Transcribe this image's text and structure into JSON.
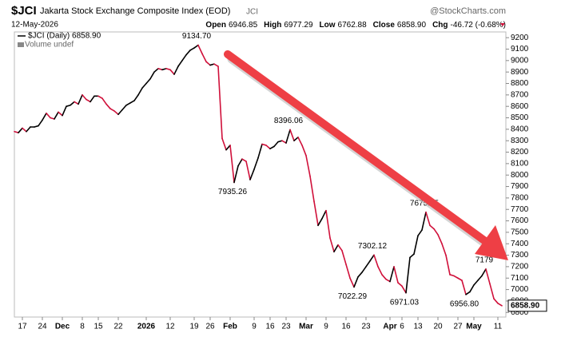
{
  "header": {
    "symbol": "$JCI",
    "name": "Jakarta Stock Exchange Composite Index (EOD)",
    "exchange": "JCI",
    "source": "@StockCharts.com",
    "date": "12-May-2026",
    "stats": [
      {
        "label": "Open",
        "value": "6946.85"
      },
      {
        "label": "High",
        "value": "6977.29"
      },
      {
        "label": "Low",
        "value": "6762.88"
      },
      {
        "label": "Close",
        "value": "6858.90"
      },
      {
        "label": "Chg",
        "value": "-46.72 (-0.68%)"
      }
    ],
    "volume_note": "Volume undef"
  },
  "chart_data": {
    "type": "line",
    "xlim": [
      0,
      122
    ],
    "xticks": [
      {
        "value": 2,
        "label": "17"
      },
      {
        "value": 7,
        "label": "24"
      },
      {
        "value": 12,
        "label": "Dec"
      },
      {
        "value": 17,
        "label": "8"
      },
      {
        "value": 21,
        "label": "15"
      },
      {
        "value": 26,
        "label": "22"
      },
      {
        "value": 33,
        "label": "2026"
      },
      {
        "value": 39,
        "label": "12"
      },
      {
        "value": 45,
        "label": "19"
      },
      {
        "value": 49,
        "label": "26"
      },
      {
        "value": 54,
        "label": "Feb"
      },
      {
        "value": 60,
        "label": "9"
      },
      {
        "value": 64,
        "label": "16"
      },
      {
        "value": 68,
        "label": "23"
      },
      {
        "value": 73,
        "label": "Mar"
      },
      {
        "value": 78,
        "label": "9"
      },
      {
        "value": 83,
        "label": "16"
      },
      {
        "value": 88,
        "label": "23"
      },
      {
        "value": 94,
        "label": "Apr"
      },
      {
        "value": 97,
        "label": "6"
      },
      {
        "value": 101,
        "label": "13"
      },
      {
        "value": 106,
        "label": "20"
      },
      {
        "value": 111,
        "label": "27"
      },
      {
        "value": 115,
        "label": "May"
      },
      {
        "value": 121,
        "label": "11"
      }
    ],
    "ylim": [
      6760,
      9250
    ],
    "yticks": [
      6800,
      6900,
      7000,
      7100,
      7200,
      7300,
      7400,
      7500,
      7600,
      7700,
      7800,
      7900,
      8000,
      8100,
      8200,
      8300,
      8400,
      8500,
      8600,
      8700,
      8800,
      8900,
      9000,
      9100,
      9200
    ],
    "up_color": "#000000",
    "down_color": "#d0103a",
    "series": [
      {
        "name": "$JCI (Daily) 6858.90",
        "values": [
          8380,
          8370,
          8410,
          8380,
          8420,
          8420,
          8430,
          8480,
          8540,
          8500,
          8490,
          8550,
          8520,
          8600,
          8610,
          8640,
          8620,
          8700,
          8660,
          8640,
          8690,
          8690,
          8670,
          8620,
          8580,
          8560,
          8530,
          8570,
          8610,
          8630,
          8650,
          8700,
          8760,
          8800,
          8840,
          8900,
          8930,
          8920,
          8930,
          8920,
          8880,
          8950,
          9000,
          9050,
          9090,
          9110,
          9134.7,
          9060,
          8990,
          8960,
          8970,
          8950,
          8320,
          8220,
          8260,
          7935.26,
          8080,
          8140,
          8120,
          7960,
          8050,
          8150,
          8270,
          8260,
          8230,
          8250,
          8290,
          8300,
          8280,
          8396.06,
          8300,
          8330,
          8260,
          8170,
          7990,
          7770,
          7560,
          7620,
          7690,
          7450,
          7330,
          7390,
          7340,
          7220,
          7100,
          7022.29,
          7110,
          7150,
          7200,
          7250,
          7302.12,
          7200,
          7130,
          7090,
          7070,
          7200,
          7060,
          7030,
          6971.03,
          7280,
          7310,
          7470,
          7520,
          7675.95,
          7560,
          7530,
          7480,
          7400,
          7300,
          7130,
          7120,
          7100,
          7080,
          6956.8,
          6980,
          7040,
          7080,
          7120,
          7179,
          7050,
          6920,
          6880,
          6858.9
        ],
        "value_labels": [
          null,
          null,
          null,
          null,
          null,
          null,
          null,
          null,
          null,
          null,
          null,
          null,
          null,
          null,
          null,
          null,
          null,
          null,
          null,
          null,
          null,
          null,
          null,
          null,
          null,
          null,
          null,
          null,
          null,
          null,
          null,
          null,
          null,
          null,
          null,
          null,
          null,
          null,
          null,
          null,
          null,
          null,
          null,
          null,
          null,
          null,
          "9134.70",
          null,
          null,
          null,
          null,
          null,
          null,
          null,
          null,
          "7935.26",
          null,
          null,
          null,
          null,
          null,
          null,
          null,
          null,
          null,
          null,
          null,
          null,
          null,
          "8396.06",
          null,
          null,
          null,
          null,
          null,
          null,
          null,
          null,
          null,
          null,
          null,
          null,
          null,
          null,
          null,
          "7022.29",
          null,
          null,
          null,
          null,
          "7302.12",
          null,
          null,
          null,
          null,
          null,
          null,
          null,
          "6971.03",
          null,
          null,
          null,
          null,
          "7675.95",
          null,
          null,
          null,
          null,
          null,
          null,
          null,
          null,
          null,
          "6956.80",
          null,
          null,
          null,
          null,
          "7179",
          null,
          null,
          null,
          "6858.90"
        ]
      }
    ]
  }
}
